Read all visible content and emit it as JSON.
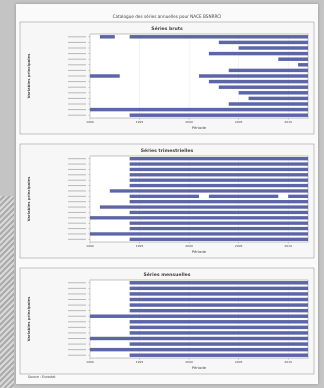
{
  "page_title": "Catalogue des séries annuelles pour NACE BSNRRCI",
  "footer_note": "Source : Eurostat",
  "chart_data": [
    {
      "type": "bar",
      "panel_title": "Séries bruts",
      "xlabel": "Période",
      "ylabel": "Variables principales",
      "x_range": [
        1990,
        2012
      ],
      "x_ticks": [
        1990,
        1995,
        2000,
        2005,
        2010
      ],
      "rows": [
        {
          "segments": [
            [
              1991,
              1992.5
            ],
            [
              1994,
              2012
            ]
          ]
        },
        {
          "segments": [
            [
              2003,
              2012
            ]
          ]
        },
        {
          "segments": [
            [
              2005,
              2012
            ]
          ]
        },
        {
          "segments": [
            [
              2002,
              2012
            ]
          ]
        },
        {
          "segments": [
            [
              2009,
              2012
            ]
          ]
        },
        {
          "segments": [
            [
              2011,
              2012
            ]
          ]
        },
        {
          "segments": [
            [
              2004,
              2012
            ]
          ]
        },
        {
          "segments": [
            [
              1990,
              1993
            ],
            [
              2001,
              2012
            ]
          ]
        },
        {
          "segments": [
            [
              2002,
              2012
            ]
          ]
        },
        {
          "segments": [
            [
              2003,
              2012
            ]
          ]
        },
        {
          "segments": [
            [
              2005,
              2012
            ]
          ]
        },
        {
          "segments": [
            [
              2006,
              2012
            ]
          ]
        },
        {
          "segments": [
            [
              2004,
              2012
            ]
          ]
        },
        {
          "segments": [
            [
              1990,
              2012
            ]
          ]
        },
        {
          "segments": [
            [
              1994,
              2012
            ]
          ]
        }
      ]
    },
    {
      "type": "bar",
      "panel_title": "Séries trimestrielles",
      "xlabel": "Période",
      "ylabel": "Variables principales",
      "x_range": [
        1990,
        2012
      ],
      "x_ticks": [
        1990,
        1995,
        2000,
        2005,
        2010
      ],
      "rows": [
        {
          "segments": [
            [
              1994,
              2012
            ]
          ]
        },
        {
          "segments": [
            [
              1994,
              2012
            ]
          ]
        },
        {
          "segments": [
            [
              1994,
              2012
            ]
          ]
        },
        {
          "segments": [
            [
              1994,
              2012
            ]
          ]
        },
        {
          "segments": [
            [
              1994,
              2012
            ]
          ]
        },
        {
          "segments": [
            [
              1994,
              2012
            ]
          ]
        },
        {
          "segments": [
            [
              1992,
              2012
            ]
          ]
        },
        {
          "segments": [
            [
              1994,
              2001
            ],
            [
              2002,
              2009
            ],
            [
              2010,
              2012
            ]
          ]
        },
        {
          "segments": [
            [
              1994,
              2012
            ]
          ]
        },
        {
          "segments": [
            [
              1991,
              2012
            ]
          ]
        },
        {
          "segments": [
            [
              1994,
              2012
            ]
          ]
        },
        {
          "segments": [
            [
              1990,
              2012
            ]
          ]
        },
        {
          "segments": [
            [
              1994,
              2012
            ]
          ]
        },
        {
          "segments": [
            [
              1994,
              2012
            ]
          ]
        },
        {
          "segments": [
            [
              1990,
              2012
            ]
          ]
        },
        {
          "segments": [
            [
              1994,
              2012
            ]
          ]
        }
      ]
    },
    {
      "type": "bar",
      "panel_title": "Séries mensuelles",
      "xlabel": "Période",
      "ylabel": "Variables principales",
      "x_range": [
        1990,
        2012
      ],
      "x_ticks": [
        1990,
        1995,
        2000,
        2005,
        2010
      ],
      "rows": [
        {
          "segments": [
            [
              1994,
              2012
            ]
          ]
        },
        {
          "segments": [
            [
              1994,
              2012
            ]
          ]
        },
        {
          "segments": [
            [
              1994,
              2012
            ]
          ]
        },
        {
          "segments": [
            [
              1994,
              2012
            ]
          ]
        },
        {
          "segments": [
            [
              1994,
              2012
            ]
          ]
        },
        {
          "segments": [
            [
              1994,
              2012
            ]
          ]
        },
        {
          "segments": [
            [
              1990,
              2012
            ]
          ]
        },
        {
          "segments": [
            [
              1994,
              2012
            ]
          ]
        },
        {
          "segments": [
            [
              1994,
              2012
            ]
          ]
        },
        {
          "segments": [
            [
              1994,
              2012
            ]
          ]
        },
        {
          "segments": [
            [
              1990,
              2012
            ]
          ]
        },
        {
          "segments": [
            [
              1994,
              2012
            ]
          ]
        },
        {
          "segments": [
            [
              1990,
              2012
            ]
          ]
        },
        {
          "segments": [
            [
              1994,
              2012
            ]
          ]
        }
      ]
    }
  ]
}
